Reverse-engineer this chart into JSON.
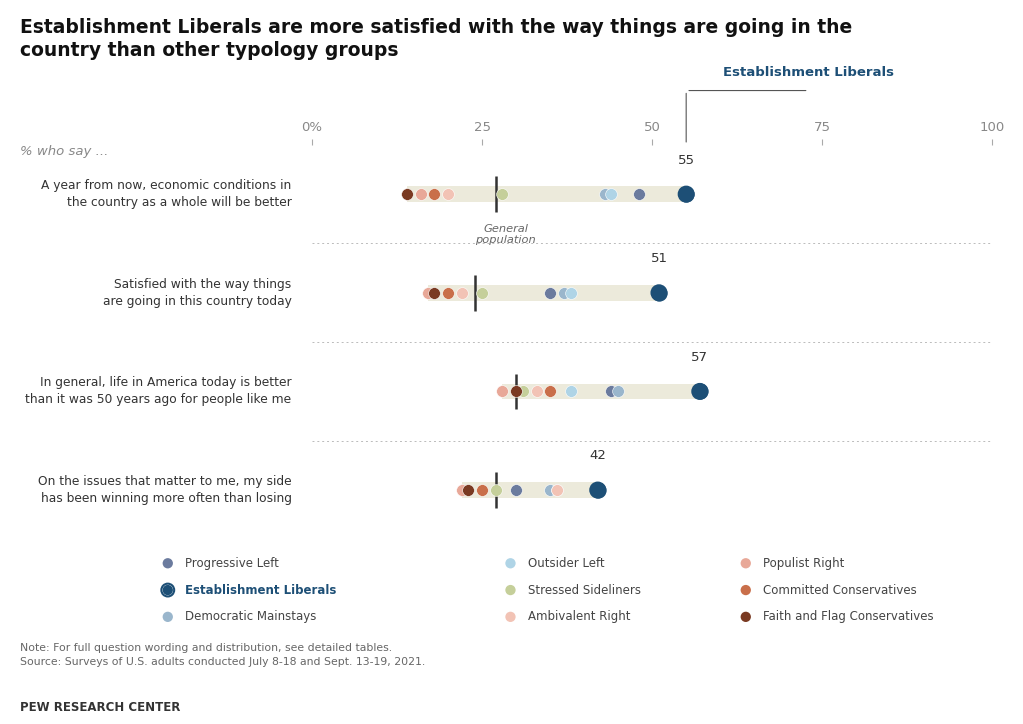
{
  "title": "Establishment Liberals are more satisfied with the way things are going in the\ncountry than other typology groups",
  "subtitle": "% who say ...",
  "questions": [
    "A year from now, economic conditions in\nthe country as a whole will be better",
    "Satisfied with the way things\nare going in this country today",
    "In general, life in America today is better\nthan it was 50 years ago for people like me",
    "On the issues that matter to me, my side\nhas been winning more often than losing"
  ],
  "establishment_liberals_values": [
    55,
    51,
    57,
    42
  ],
  "general_population_values": [
    27,
    24,
    30,
    27
  ],
  "groups": [
    {
      "name": "Progressive Left",
      "color": "#6b7b9e",
      "values": [
        48,
        35,
        44,
        30
      ]
    },
    {
      "name": "Establishment Liberals",
      "color": "#1d4f76",
      "values": [
        55,
        51,
        57,
        42
      ]
    },
    {
      "name": "Democratic Mainstays",
      "color": "#9ab6cc",
      "values": [
        43,
        37,
        45,
        35
      ]
    },
    {
      "name": "Outsider Left",
      "color": "#afd4e6",
      "values": [
        44,
        38,
        38,
        36
      ]
    },
    {
      "name": "Stressed Sideliners",
      "color": "#c5cf9a",
      "values": [
        28,
        25,
        31,
        27
      ]
    },
    {
      "name": "Ambivalent Right",
      "color": "#f2c3b5",
      "values": [
        20,
        22,
        33,
        36
      ]
    },
    {
      "name": "Populist Right",
      "color": "#e8a898",
      "values": [
        16,
        17,
        28,
        22
      ]
    },
    {
      "name": "Committed Conservatives",
      "color": "#c96f4a",
      "values": [
        18,
        20,
        35,
        25
      ]
    },
    {
      "name": "Faith and Flag Conservatives",
      "color": "#7a3a22",
      "values": [
        14,
        18,
        30,
        23
      ]
    }
  ],
  "legend_rows": [
    [
      {
        "name": "Progressive Left",
        "color": "#6b7b9e",
        "bold": false
      },
      {
        "name": "Outsider Left",
        "color": "#afd4e6",
        "bold": false
      },
      {
        "name": "Populist Right",
        "color": "#e8a898",
        "bold": false
      }
    ],
    [
      {
        "name": "Establishment Liberals",
        "color": "#1d4f76",
        "bold": true
      },
      {
        "name": "Stressed Sideliners",
        "color": "#c5cf9a",
        "bold": false
      },
      {
        "name": "Committed Conservatives",
        "color": "#c96f4a",
        "bold": false
      }
    ],
    [
      {
        "name": "Democratic Mainstays",
        "color": "#9ab6cc",
        "bold": false
      },
      {
        "name": "Ambivalent Right",
        "color": "#f2c3b5",
        "bold": false
      },
      {
        "name": "Faith and Flag Conservatives",
        "color": "#7a3a22",
        "bold": false
      }
    ]
  ],
  "note": "Note: For full question wording and distribution, see detailed tables.\nSource: Surveys of U.S. adults conducted July 8-18 and Sept. 13-19, 2021.",
  "source_label": "PEW RESEARCH CENTER",
  "xticks": [
    0,
    25,
    50,
    75,
    100
  ],
  "xticklabels": [
    "0%",
    "25",
    "50",
    "75",
    "100"
  ],
  "band_color": "#eceadb",
  "sep_color": "#bbbbbb",
  "tick_color": "#333333",
  "background_color": "#ffffff"
}
